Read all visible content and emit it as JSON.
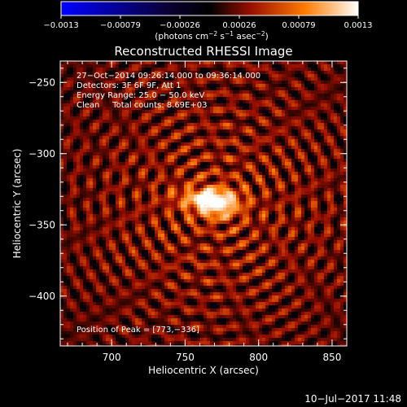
{
  "chart_data": {
    "type": "heatmap",
    "title": "Reconstructed RHESSI Image",
    "xlabel": "Heliocentric X (arcsec)",
    "ylabel": "Heliocentric Y (arcsec)",
    "xlim": [
      665,
      860
    ],
    "ylim": [
      -435,
      -235
    ],
    "x_ticks": [
      700,
      750,
      800,
      850
    ],
    "y_ticks": [
      -250,
      -300,
      -350,
      -400
    ],
    "x_tick_labels": [
      "700",
      "750",
      "800",
      "850"
    ],
    "y_tick_labels": [
      "−250",
      "−300",
      "−350",
      "−400"
    ],
    "colorbar": {
      "range": [
        -0.0013,
        0.0013
      ],
      "tick_labels": [
        "−0.0013",
        "−0.00079",
        "−0.00026",
        "0.00026",
        "0.00079",
        "0.0013"
      ],
      "unit_prefix": "(photons cm",
      "unit_exp1": "−2",
      "unit_mid": " s",
      "unit_exp2": "−1",
      "unit_mid2": " asec",
      "unit_exp3": "−2",
      "unit_suffix": ")"
    },
    "annotations": [
      "27−Oct−2014 09:26:14.000 to 09:36:14.000",
      "Detectors: 3F 6F 9F, Att 1",
      "Energy Range: 25.0 − 50.0 keV",
      "Clean     Total counts: 8.69E+03"
    ],
    "peak_label": "Position of Peak = [773,−336]",
    "peak": {
      "x": 773,
      "y": -336
    },
    "source": {
      "x": 772,
      "y": -335,
      "sigma_arcsec": 7,
      "peak_value": 0.0013
    },
    "timestamp": "10−Jul−2017 11:48"
  }
}
